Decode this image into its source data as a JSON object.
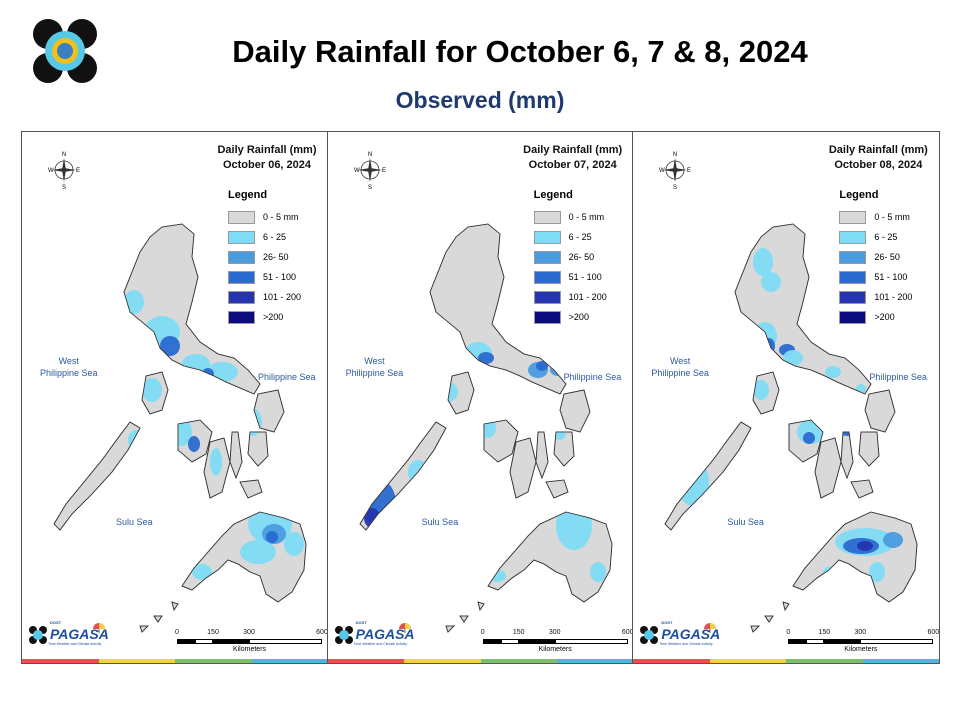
{
  "header": {
    "title": "Daily Rainfall for October 6, 7 & 8, 2024",
    "subtitle": "Observed (mm)"
  },
  "legend": {
    "title": "Legend",
    "items": [
      {
        "label": "0 - 5 mm",
        "color": "#d9d9d9"
      },
      {
        "label": "6 - 25",
        "color": "#7fdcf5"
      },
      {
        "label": "26- 50",
        "color": "#4a9be0"
      },
      {
        "label": "51 - 100",
        "color": "#2a6ad0"
      },
      {
        "label": "101 - 200",
        "color": "#2535b0"
      },
      {
        "label": ">200",
        "color": "#0c0c80"
      }
    ]
  },
  "panels": [
    {
      "title": "Daily Rainfall (mm)",
      "date": "October 06, 2024"
    },
    {
      "title": "Daily Rainfall (mm)",
      "date": "October 07, 2024"
    },
    {
      "title": "Daily Rainfall (mm)",
      "date": "October 08, 2024"
    }
  ],
  "seas": {
    "west_line1": "West",
    "west_line2": "Philippine Sea",
    "east": "Philippine Sea",
    "sulu": "Sulu Sea"
  },
  "compass": {
    "n": "N",
    "s": "S",
    "e": "E",
    "w": "W"
  },
  "scale": {
    "ticks": [
      "0",
      "150",
      "300",
      "600"
    ],
    "unit": "Kilometers"
  },
  "branding": {
    "agency": "PAGASA",
    "dept": "DOST",
    "tagline": "Time Weather and Climate Activity"
  },
  "colors": {
    "land": "#d9d9d9",
    "stripe": [
      "#e6514c",
      "#f2d04a",
      "#7dbf6a",
      "#5aaee0"
    ]
  }
}
